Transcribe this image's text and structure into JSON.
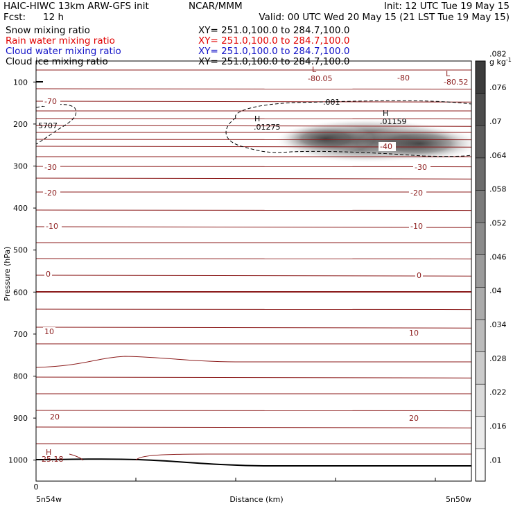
{
  "header": {
    "title": "HAIC-HIWC 13km ARW-GFS init",
    "center": "NCAR/MMM",
    "init": "Init: 12 UTC Tue 19 May 15",
    "fcst_label": "Fcst:",
    "fcst_value": "12 h",
    "valid": "Valid: 00 UTC Wed 20 May 15 (21 LST Tue 19 May 15)",
    "fields": [
      {
        "name": "Snow mixing ratio",
        "xy": "XY= 251.0,100.0 to 284.7,100.0",
        "color": "#000000"
      },
      {
        "name": "Rain water mixing ratio",
        "xy": "XY= 251.0,100.0 to 284.7,100.0",
        "color": "#e00000"
      },
      {
        "name": "Cloud water mixing ratio",
        "xy": "XY= 251.0,100.0 to 284.7,100.0",
        "color": "#1414c8"
      },
      {
        "name": "Cloud ice mixing ratio",
        "xy": "XY= 251.0,100.0 to 284.7,100.0",
        "color": "#000000"
      }
    ]
  },
  "chart_data": {
    "type": "heatmap",
    "title": "Snow mixing ratio",
    "xlabel": "Distance (km)",
    "ylabel": "Pressure (hPa)",
    "x_tick_labels": {
      "left_value": "0",
      "left": "5n54w",
      "right": "5n50w"
    },
    "ylim": [
      1050,
      50
    ],
    "yticks": [
      100,
      200,
      300,
      400,
      500,
      600,
      700,
      800,
      900,
      1000
    ],
    "colorbar": {
      "unit": "g kg",
      "unit_exp": "-1",
      "ticks": [
        ".01",
        ".016",
        ".022",
        ".028",
        ".034",
        ".04",
        ".046",
        ".052",
        ".058",
        ".064",
        ".07",
        ".076",
        ".082"
      ],
      "min": 0.007,
      "max": 0.088
    },
    "snow_mixing_ratio_max": {
      "label": "H",
      "value": ".01159"
    },
    "cloud_ice_contour": {
      "label": ".001",
      "style": "dashed"
    },
    "cloud_ice_max": {
      "label": "H",
      "value": ".01275"
    },
    "temperature_contours": [
      {
        "label": "-70"
      },
      {
        "label": "-40"
      },
      {
        "label": "-30"
      },
      {
        "label": "-20"
      },
      {
        "label": "-10"
      },
      {
        "label": "0"
      },
      {
        "label": "10"
      },
      {
        "label": "20"
      }
    ],
    "extrema": [
      {
        "type": "L",
        "value": "-80.05"
      },
      {
        "type": "L",
        "value": "-80.52"
      },
      {
        "type": "H",
        "value": "25.18"
      },
      {
        "type": "",
        "value": "5707"
      },
      {
        "type": "",
        "value": "-80"
      }
    ],
    "colors": {
      "temperature": "#8b1a1a",
      "terrain": "#000000",
      "shading": "#3c3c3c"
    }
  }
}
